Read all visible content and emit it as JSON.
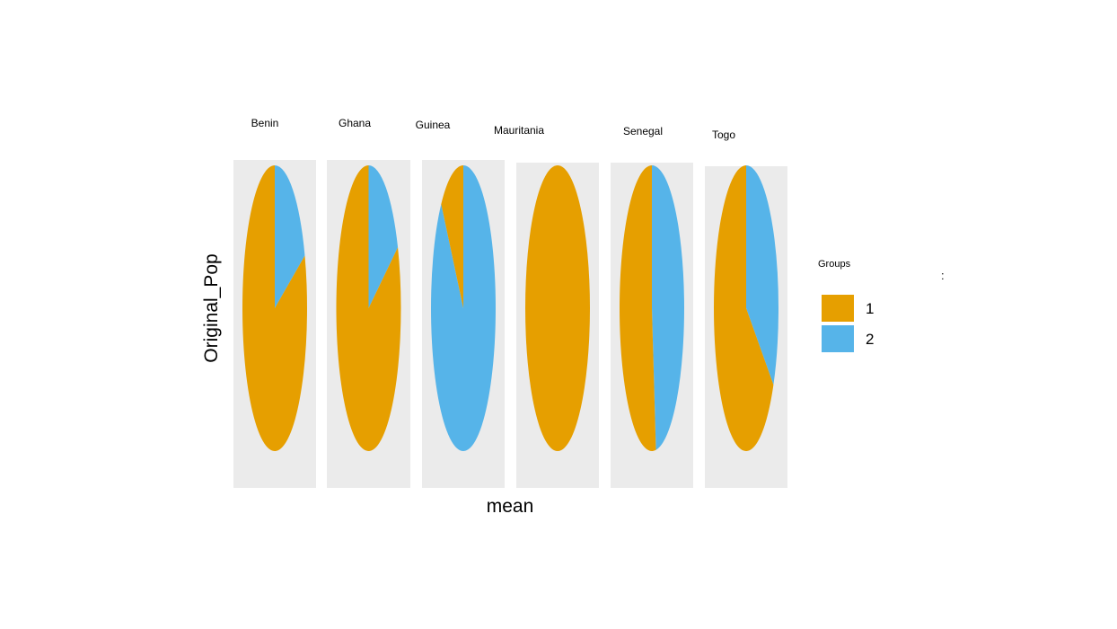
{
  "chart_data": {
    "type": "pie",
    "xlabel": "mean",
    "ylabel": "Original_Pop",
    "legend": {
      "title": "Groups",
      "placement": "right",
      "entries": [
        {
          "group": "1",
          "label": "1",
          "color": "#E69F00"
        },
        {
          "group": "2",
          "label": "2",
          "color": "#56B4E9"
        }
      ]
    },
    "panel_background": "#EBEBEB",
    "facets": [
      {
        "name": "Benin",
        "slices": [
          {
            "group": "1",
            "value": 0.81
          },
          {
            "group": "2",
            "value": 0.19
          }
        ]
      },
      {
        "name": "Ghana",
        "slices": [
          {
            "group": "1",
            "value": 0.82
          },
          {
            "group": "2",
            "value": 0.18
          }
        ]
      },
      {
        "name": "Guinea",
        "slices": [
          {
            "group": "1",
            "value": 0.12
          },
          {
            "group": "2",
            "value": 0.88
          }
        ]
      },
      {
        "name": "Mauritania",
        "slices": [
          {
            "group": "1",
            "value": 1.0
          },
          {
            "group": "2",
            "value": 0.0
          }
        ]
      },
      {
        "name": "Senegal",
        "slices": [
          {
            "group": "1",
            "value": 0.52
          },
          {
            "group": "2",
            "value": 0.48
          }
        ]
      },
      {
        "name": "Togo",
        "slices": [
          {
            "group": "1",
            "value": 0.66
          },
          {
            "group": "2",
            "value": 0.34
          }
        ]
      }
    ],
    "stray_mark": ":"
  }
}
